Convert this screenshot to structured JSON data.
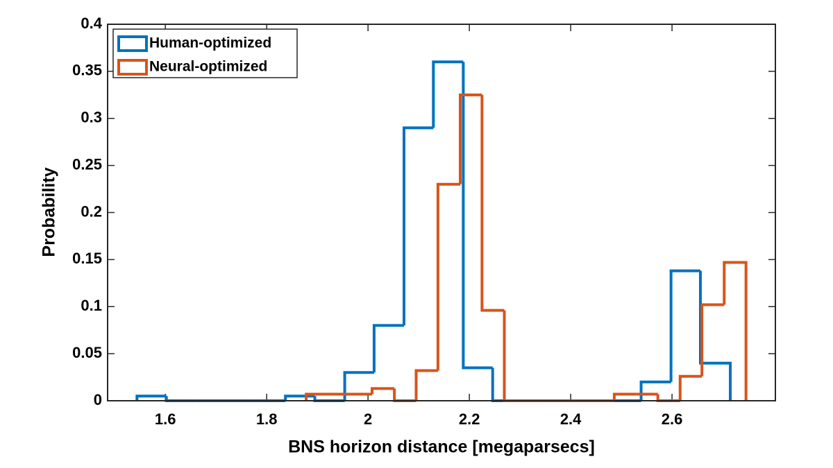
{
  "chart_data": {
    "type": "histogram",
    "x_label": "BNS horizon distance [megaparsecs]",
    "y_label": "Probability",
    "xlim": [
      1.486,
      2.804
    ],
    "ylim": [
      0,
      0.4
    ],
    "xticks": [
      1.6,
      1.8,
      2,
      2.2,
      2.4,
      2.6
    ],
    "yticks": [
      0,
      0.05,
      0.1,
      0.15,
      0.2,
      0.25,
      0.3,
      0.35,
      0.4
    ],
    "legend_position": "upper left",
    "series": [
      {
        "name": "Human-optimized",
        "color": "#0072bd",
        "bins": [
          1.544,
          1.602,
          1.661,
          1.719,
          1.778,
          1.837,
          1.895,
          1.954,
          2.012,
          2.071,
          2.129,
          2.188,
          2.246,
          2.305,
          2.364,
          2.422,
          2.481,
          2.539,
          2.598,
          2.656,
          2.715
        ],
        "values": [
          0.005,
          0,
          0,
          0,
          0,
          0.005,
          0,
          0.03,
          0.08,
          0.29,
          0.36,
          0.035,
          0,
          0,
          0,
          0,
          0,
          0.02,
          0.138,
          0.04
        ]
      },
      {
        "name": "Neural-optimized",
        "color": "#d95319",
        "bins": [
          1.878,
          1.921,
          1.965,
          2.008,
          2.052,
          2.095,
          2.138,
          2.182,
          2.225,
          2.269,
          2.312,
          2.355,
          2.399,
          2.442,
          2.486,
          2.529,
          2.572,
          2.616,
          2.659,
          2.703,
          2.746
        ],
        "values": [
          0.007,
          0.007,
          0.007,
          0.013,
          0,
          0.032,
          0.23,
          0.325,
          0.096,
          0,
          0,
          0,
          0,
          0,
          0.007,
          0.007,
          0,
          0.026,
          0.102,
          0.147
        ]
      }
    ]
  }
}
